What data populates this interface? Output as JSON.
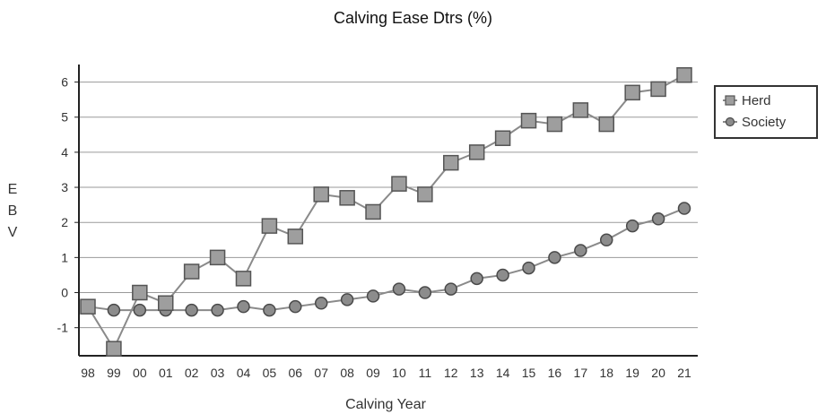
{
  "chart_data": {
    "type": "line",
    "title": "Calving Ease Dtrs (%)",
    "xlabel": "Calving Year",
    "ylabel": "EBV",
    "categories": [
      "98",
      "99",
      "00",
      "01",
      "02",
      "03",
      "04",
      "05",
      "06",
      "07",
      "08",
      "09",
      "10",
      "11",
      "12",
      "13",
      "14",
      "15",
      "16",
      "17",
      "18",
      "19",
      "20",
      "21"
    ],
    "ylim": [
      -1.8,
      6.5
    ],
    "yticks": [
      -1,
      0,
      1,
      2,
      3,
      4,
      5,
      6
    ],
    "grid": true,
    "legend_position": "right",
    "series": [
      {
        "name": "Herd",
        "marker": "square",
        "values": [
          -0.4,
          -1.6,
          0.0,
          -0.3,
          0.6,
          1.0,
          0.4,
          1.9,
          1.6,
          2.8,
          2.7,
          2.3,
          3.1,
          2.8,
          3.7,
          4.0,
          4.4,
          4.9,
          4.8,
          5.2,
          4.8,
          5.7,
          5.8,
          6.2
        ]
      },
      {
        "name": "Society",
        "marker": "circle",
        "values": [
          -0.4,
          -0.5,
          -0.5,
          -0.5,
          -0.5,
          -0.5,
          -0.4,
          -0.5,
          -0.4,
          -0.3,
          -0.2,
          -0.1,
          0.1,
          0.0,
          0.1,
          0.4,
          0.5,
          0.7,
          1.0,
          1.2,
          1.5,
          1.9,
          2.1,
          2.4
        ]
      }
    ]
  },
  "colors": {
    "line": "#8a8a8a",
    "square_fill": "#9e9e9e",
    "square_stroke": "#555555",
    "circle_fill": "#8c8c8c",
    "circle_stroke": "#4a4a4a",
    "grid": "#9a9a9a",
    "axis": "#222222"
  }
}
